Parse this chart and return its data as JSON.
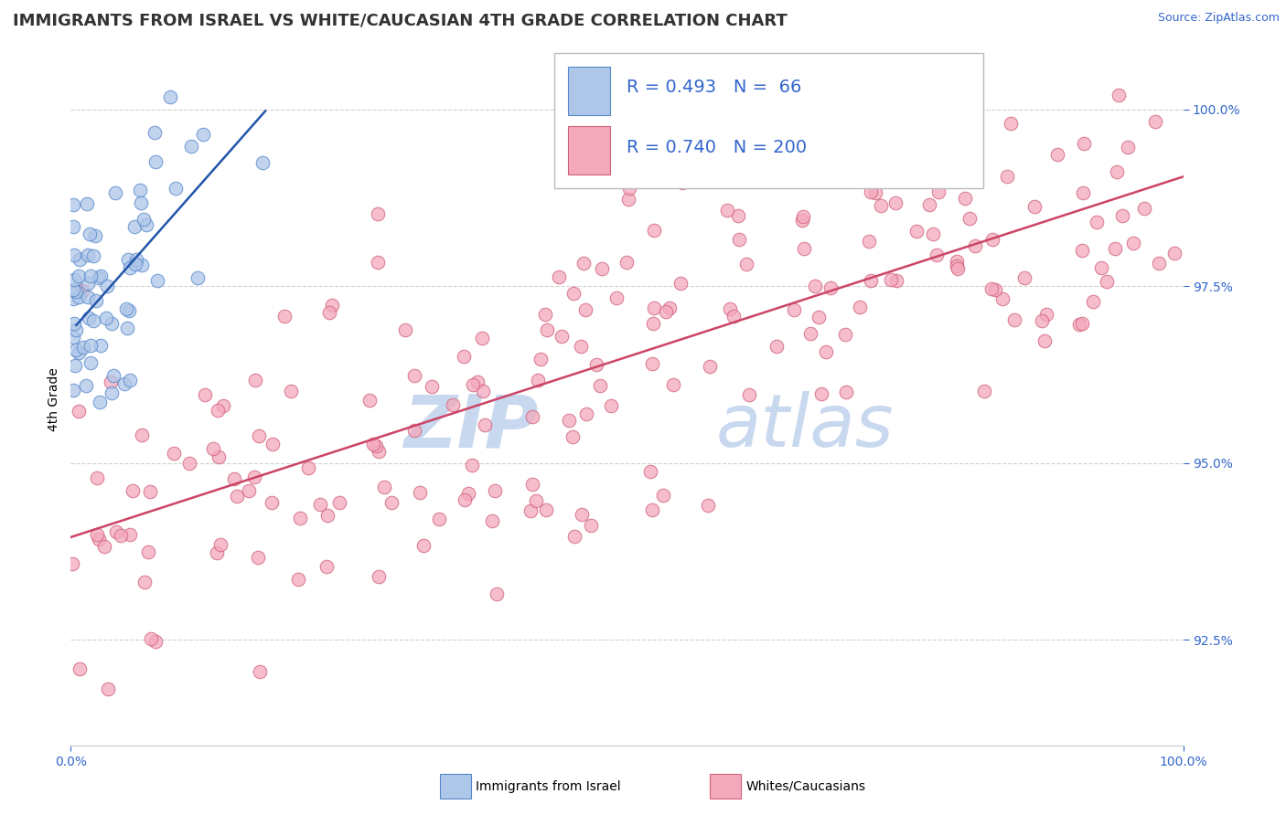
{
  "title": "IMMIGRANTS FROM ISRAEL VS WHITE/CAUCASIAN 4TH GRADE CORRELATION CHART",
  "source_text": "Source: ZipAtlas.com",
  "ylabel": "4th Grade",
  "xlim": [
    0.0,
    1.0
  ],
  "ylim": [
    0.91,
    1.008
  ],
  "yticks": [
    0.925,
    0.95,
    0.975,
    1.0
  ],
  "ytick_labels": [
    "92.5%",
    "95.0%",
    "97.5%",
    "100.0%"
  ],
  "xtick_labels": [
    "0.0%",
    "100.0%"
  ],
  "xticks": [
    0.0,
    1.0
  ],
  "blue_R": 0.493,
  "blue_N": 66,
  "pink_R": 0.74,
  "pink_N": 200,
  "blue_fill": "#aec6e8",
  "blue_edge": "#5588cc",
  "pink_fill": "#f4a8bc",
  "pink_edge": "#d0607a",
  "blue_line_color": "#2255aa",
  "pink_line_color": "#cc4466",
  "label_color": "#3366cc",
  "background_color": "#ffffff",
  "grid_color": "#cccccc",
  "watermark_color": "#c8d8ee",
  "title_fontsize": 13,
  "axis_label_fontsize": 10,
  "tick_fontsize": 10,
  "legend_fontsize": 14,
  "pink_line_x0": 0.0,
  "pink_line_y0": 0.9395,
  "pink_line_x1": 1.0,
  "pink_line_y1": 0.9905,
  "blue_line_x0": 0.005,
  "blue_line_y0": 0.9695,
  "blue_line_x1": 0.175,
  "blue_line_y1": 0.9998
}
